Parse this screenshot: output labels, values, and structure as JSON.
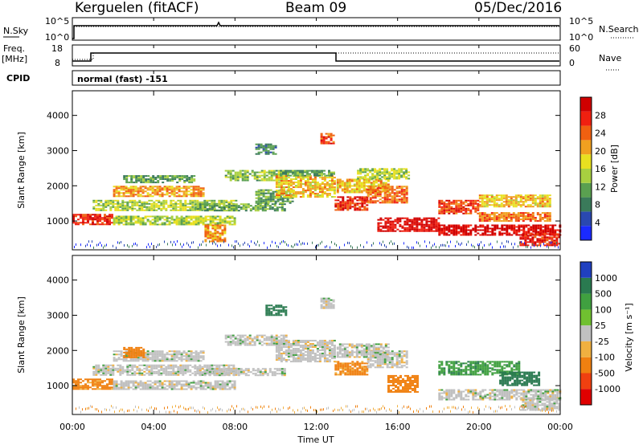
{
  "header": {
    "radar": "Kerguelen (fitACF)",
    "beam": "Beam 09",
    "date": "05/Dec/2016"
  },
  "top_panels": {
    "noise": {
      "left_label": "N.Sky",
      "right_label": "N.Search",
      "left_ticks": [
        "10^5",
        "10^0"
      ],
      "right_ticks": [
        "10^5",
        "10^0"
      ]
    },
    "freq": {
      "left_label_1": "Freq.",
      "left_label_2": "[MHz]",
      "left_ticks": [
        "18",
        "8"
      ],
      "right_label": "Nave",
      "right_ticks": [
        "60",
        "0"
      ]
    },
    "cpid": {
      "label": "CPID",
      "value": "normal (fast) -151"
    }
  },
  "panels": {
    "power": {
      "ylabel": "Slant Range [km]",
      "yticks": [
        "1000",
        "2000",
        "3000",
        "4000"
      ],
      "colorbar_label": "Power [dB]",
      "colorbar_ticks": [
        "4",
        "8",
        "12",
        "16",
        "20",
        "24",
        "28"
      ],
      "colors": [
        "#1a2aff",
        "#2a48b0",
        "#3a7a5a",
        "#5aa050",
        "#a8d040",
        "#e8e020",
        "#f0a020",
        "#f06010",
        "#f02010",
        "#d00000"
      ]
    },
    "velocity": {
      "ylabel": "Slant Range [km]",
      "yticks": [
        "1000",
        "2000",
        "3000",
        "4000"
      ],
      "colorbar_label": "Velocity [m s⁻¹]",
      "colorbar_ticks": [
        "1000",
        "500",
        "100",
        "25",
        "-25",
        "-100",
        "-500",
        "-1000"
      ],
      "colors": [
        "#2040c0",
        "#2a7a50",
        "#40a040",
        "#70c030",
        "#c0c0c0",
        "#f0b040",
        "#f08010",
        "#f04010",
        "#e00000"
      ]
    }
  },
  "xaxis": {
    "ticks": [
      "00:00",
      "04:00",
      "08:00",
      "12:00",
      "16:00",
      "20:00",
      "00:00"
    ],
    "label": "Time UT"
  },
  "chart_data": [
    {
      "type": "heatmap",
      "title": "Power",
      "xlabel": "Time UT",
      "ylabel": "Slant Range [km]",
      "xlim": [
        0,
        24
      ],
      "ylim": [
        180,
        4700
      ],
      "colorbar_range": [
        0,
        30
      ],
      "bands": [
        {
          "t0": 0.0,
          "t1": 2.0,
          "r0": 900,
          "r1": 1200,
          "value": 26
        },
        {
          "t0": 1.0,
          "t1": 8.0,
          "r0": 1300,
          "r1": 1600,
          "value": 14
        },
        {
          "t0": 2.0,
          "t1": 6.5,
          "r0": 1700,
          "r1": 2000,
          "value": 20
        },
        {
          "t0": 2.5,
          "t1": 6.0,
          "r0": 2100,
          "r1": 2300,
          "value": 10
        },
        {
          "t0": 2.0,
          "t1": 8.0,
          "r0": 900,
          "r1": 1150,
          "value": 14
        },
        {
          "t0": 6.0,
          "t1": 10.5,
          "r0": 1300,
          "r1": 1500,
          "value": 10
        },
        {
          "t0": 7.5,
          "t1": 10.5,
          "r0": 2150,
          "r1": 2450,
          "value": 12
        },
        {
          "t0": 9.0,
          "t1": 10.8,
          "r0": 1500,
          "r1": 1900,
          "value": 10
        },
        {
          "t0": 10.0,
          "t1": 12.9,
          "r0": 1700,
          "r1": 2300,
          "value": 18
        },
        {
          "t0": 10.2,
          "t1": 12.9,
          "r0": 2300,
          "r1": 2450,
          "value": 10
        },
        {
          "t0": 12.9,
          "t1": 14.5,
          "r0": 1300,
          "r1": 1700,
          "value": 26
        },
        {
          "t0": 13.0,
          "t1": 15.5,
          "r0": 1800,
          "r1": 2200,
          "value": 18
        },
        {
          "t0": 14.0,
          "t1": 16.5,
          "r0": 2200,
          "r1": 2500,
          "value": 14
        },
        {
          "t0": 14.5,
          "t1": 16.5,
          "r0": 1500,
          "r1": 2000,
          "value": 22
        },
        {
          "t0": 15.0,
          "t1": 18.0,
          "r0": 700,
          "r1": 1100,
          "value": 28
        },
        {
          "t0": 18.0,
          "t1": 24.0,
          "r0": 600,
          "r1": 900,
          "value": 29
        },
        {
          "t0": 18.0,
          "t1": 20.0,
          "r0": 1200,
          "r1": 1600,
          "value": 24
        },
        {
          "t0": 20.0,
          "t1": 23.5,
          "r0": 1000,
          "r1": 1250,
          "value": 22
        },
        {
          "t0": 20.0,
          "t1": 23.5,
          "r0": 1400,
          "r1": 1750,
          "value": 18
        },
        {
          "t0": 22.0,
          "t1": 24.0,
          "r0": 300,
          "r1": 650,
          "value": 26
        },
        {
          "t0": 6.5,
          "t1": 7.5,
          "r0": 400,
          "r1": 900,
          "value": 20
        },
        {
          "t0": 9.0,
          "t1": 10.0,
          "r0": 2900,
          "r1": 3200,
          "value": 8
        },
        {
          "t0": 12.2,
          "t1": 12.8,
          "r0": 3200,
          "r1": 3500,
          "value": 24
        }
      ]
    },
    {
      "type": "heatmap",
      "title": "Velocity",
      "xlabel": "Time UT",
      "ylabel": "Slant Range [km]",
      "xlim": [
        0,
        24
      ],
      "ylim": [
        180,
        4700
      ],
      "colorbar_range": [
        -1000,
        1000
      ],
      "bands": [
        {
          "t0": 0.0,
          "t1": 2.0,
          "r0": 900,
          "r1": 1200,
          "value": -120
        },
        {
          "t0": 1.0,
          "t1": 8.0,
          "r0": 1300,
          "r1": 1600,
          "value": 0
        },
        {
          "t0": 2.0,
          "t1": 6.5,
          "r0": 1700,
          "r1": 2000,
          "value": 0
        },
        {
          "t0": 2.0,
          "t1": 8.0,
          "r0": 900,
          "r1": 1150,
          "value": 0
        },
        {
          "t0": 6.0,
          "t1": 10.5,
          "r0": 1300,
          "r1": 1500,
          "value": 0
        },
        {
          "t0": 7.5,
          "t1": 10.5,
          "r0": 2150,
          "r1": 2450,
          "value": 0
        },
        {
          "t0": 10.0,
          "t1": 12.9,
          "r0": 1700,
          "r1": 2300,
          "value": 0
        },
        {
          "t0": 12.9,
          "t1": 14.5,
          "r0": 1300,
          "r1": 1700,
          "value": -120
        },
        {
          "t0": 13.0,
          "t1": 15.5,
          "r0": 1800,
          "r1": 2200,
          "value": 0
        },
        {
          "t0": 14.5,
          "t1": 16.5,
          "r0": 1500,
          "r1": 2000,
          "value": 0
        },
        {
          "t0": 15.5,
          "t1": 17.0,
          "r0": 800,
          "r1": 1300,
          "value": -300
        },
        {
          "t0": 18.0,
          "t1": 22.0,
          "r0": 1300,
          "r1": 1700,
          "value": 80
        },
        {
          "t0": 21.0,
          "t1": 23.0,
          "r0": 1000,
          "r1": 1400,
          "value": 150
        },
        {
          "t0": 18.0,
          "t1": 24.0,
          "r0": 600,
          "r1": 900,
          "value": 0
        },
        {
          "t0": 22.0,
          "t1": 24.0,
          "r0": 300,
          "r1": 650,
          "value": 0
        },
        {
          "t0": 2.5,
          "t1": 3.5,
          "r0": 1800,
          "r1": 2100,
          "value": -150
        },
        {
          "t0": 9.5,
          "t1": 10.5,
          "r0": 3000,
          "r1": 3300,
          "value": 150
        },
        {
          "t0": 12.2,
          "t1": 12.8,
          "r0": 3200,
          "r1": 3500,
          "value": 0
        }
      ]
    }
  ]
}
